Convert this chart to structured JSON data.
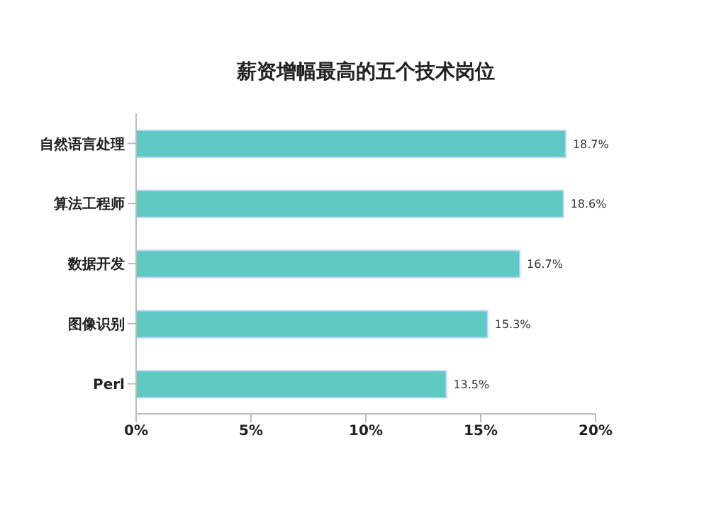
{
  "chart_data": {
    "type": "bar",
    "orientation": "horizontal",
    "title": "薪资增幅最高的五个技术岗位",
    "categories": [
      "自然语言处理",
      "算法工程师",
      "数据开发",
      "图像识别",
      "Perl"
    ],
    "values": [
      18.7,
      18.6,
      16.7,
      15.3,
      13.5
    ],
    "value_labels": [
      "18.7%",
      "18.6%",
      "16.7%",
      "15.3%",
      "13.5%"
    ],
    "color": "#5ec8c2",
    "xlim": [
      0,
      20
    ],
    "xticks": [
      {
        "value": 0,
        "label": "0%"
      },
      {
        "value": 5,
        "label": "5%"
      },
      {
        "value": 10,
        "label": "10%"
      },
      {
        "value": 15,
        "label": "15%"
      },
      {
        "value": 20,
        "label": "20%"
      }
    ],
    "grid": false,
    "legend": false
  }
}
